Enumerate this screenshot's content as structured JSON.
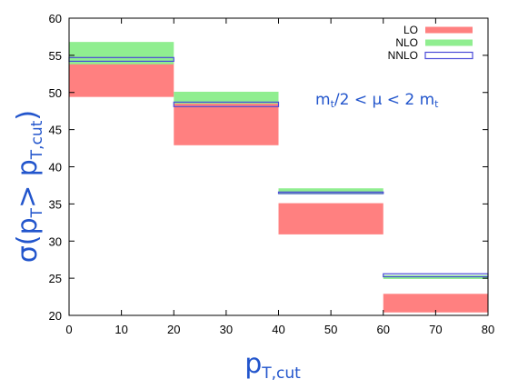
{
  "chart_data": {
    "type": "bar",
    "title": "",
    "xlabel_main": "p",
    "xlabel_sub": "T,cut",
    "ylabel_pre": "σ(p",
    "ylabel_sub": "T",
    "ylabel_mid": "> p",
    "ylabel_sub2": "T,cut",
    "ylabel_post": ")",
    "xlim": [
      0,
      80
    ],
    "ylim": [
      20,
      60
    ],
    "xticks": [
      "0",
      "10",
      "20",
      "30",
      "40",
      "50",
      "60",
      "70",
      "80"
    ],
    "yticks": [
      "20",
      "25",
      "30",
      "35",
      "40",
      "45",
      "50",
      "55",
      "60"
    ],
    "legend_position": "top-right",
    "annotation": {
      "m1": "m",
      "m1_sub": "t",
      "rel": "/2 < μ < 2 m",
      "m2_sub": "t"
    },
    "bins": [
      {
        "x0": 0,
        "x1": 20
      },
      {
        "x0": 20,
        "x1": 40
      },
      {
        "x0": 40,
        "x1": 60
      },
      {
        "x0": 60,
        "x1": 80
      }
    ],
    "series": [
      {
        "name": "LO",
        "color": "#ff8080",
        "style": "filled",
        "lower": [
          49.4,
          42.9,
          30.9,
          20.4
        ],
        "upper": [
          54.3,
          48.5,
          35.1,
          22.9
        ]
      },
      {
        "name": "NLO",
        "color": "#90ee90",
        "style": "filled",
        "lower": [
          53.8,
          48.5,
          36.3,
          24.9
        ],
        "upper": [
          56.8,
          50.1,
          37.1,
          25.4
        ]
      },
      {
        "name": "NNLO",
        "color": "#4a4ad8",
        "style": "outline",
        "lower": [
          54.2,
          48.1,
          36.4,
          25.2
        ],
        "upper": [
          54.7,
          48.7,
          36.6,
          25.6
        ]
      }
    ]
  }
}
